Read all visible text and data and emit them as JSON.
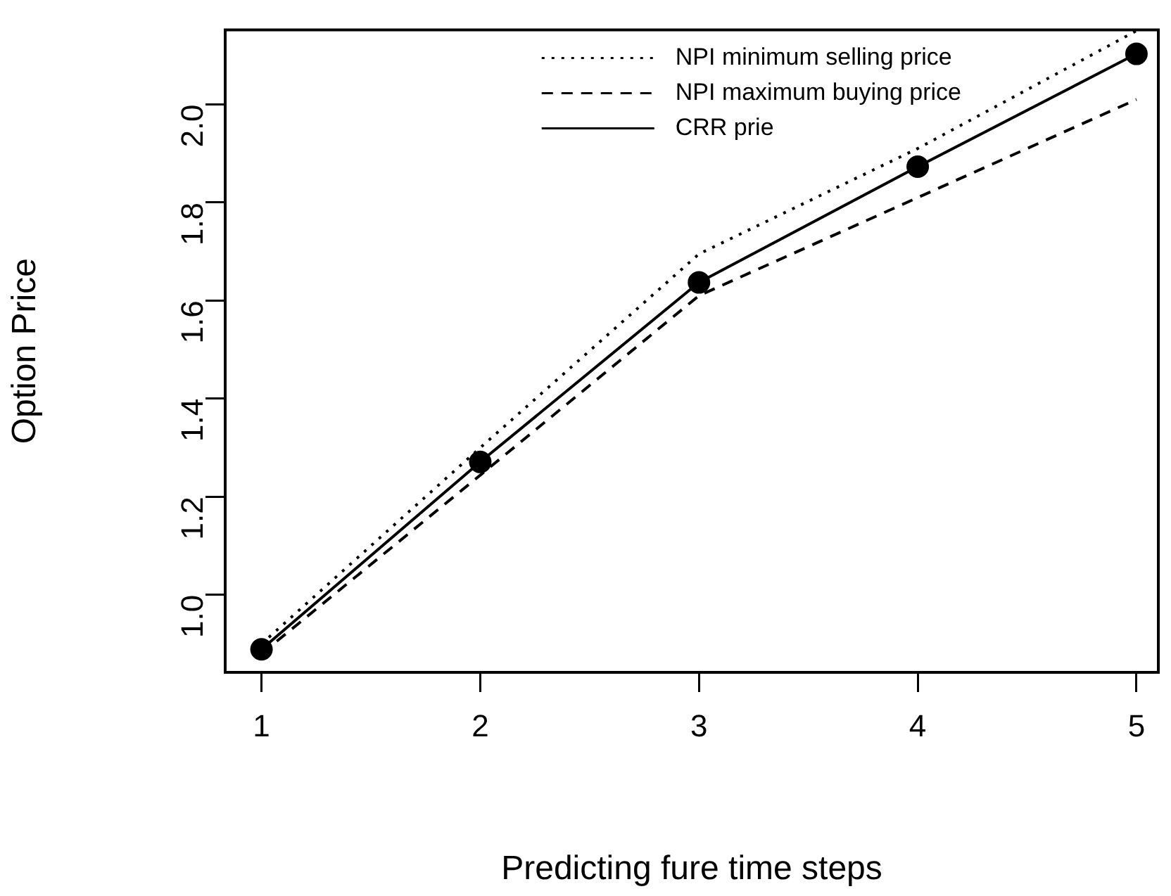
{
  "chart_data": {
    "type": "line",
    "xlabel": "Predicting fure time steps",
    "ylabel": "Option Price",
    "x": [
      1,
      2,
      3,
      4,
      5
    ],
    "xlim": [
      0.834,
      5.1
    ],
    "xticks": [
      1,
      2,
      3,
      4,
      5
    ],
    "ylim": [
      0.842,
      2.152
    ],
    "yticks": [
      {
        "value": 1,
        "label": "1.0"
      },
      {
        "value": 1.2,
        "label": "1.2"
      },
      {
        "value": 1.4,
        "label": "1.4"
      },
      {
        "value": 1.6,
        "label": "1.6"
      },
      {
        "value": 1.8,
        "label": "1.8"
      },
      {
        "value": 2,
        "label": "2.0"
      }
    ],
    "grid": false,
    "legend": "top right",
    "series": [
      {
        "name": "NPI minimum selling price",
        "color": "#000000",
        "values": [
          0.9,
          1.3,
          1.695,
          1.91,
          2.15
        ],
        "line_style": "dotted",
        "marker": "none"
      },
      {
        "name": "NPI maximum buying price",
        "color": "#000000",
        "values": [
          0.88,
          1.244,
          1.61,
          1.81,
          2.01
        ],
        "line_style": "dashed",
        "marker": "none"
      },
      {
        "name": "CRR prie",
        "color": "#000000",
        "values": [
          0.889,
          1.271,
          1.637,
          1.873,
          2.103
        ],
        "line_style": "solid",
        "marker": "circle"
      }
    ]
  }
}
